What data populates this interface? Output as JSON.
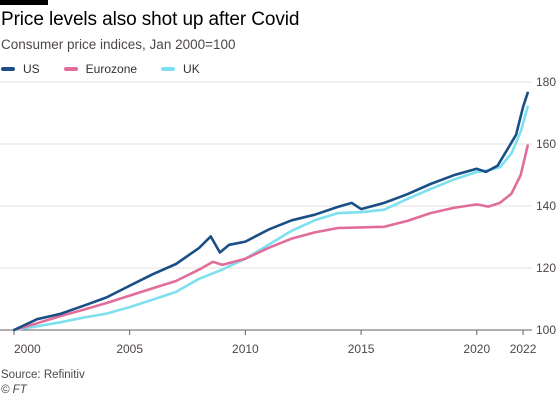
{
  "header": {
    "title": "Price levels also shot up after Covid",
    "subtitle": "Consumer price indices, Jan 2000=100"
  },
  "legend": [
    {
      "name": "US",
      "color": "#1a4f86"
    },
    {
      "name": "Eurozone",
      "color": "#e16d9a"
    },
    {
      "name": "UK",
      "color": "#7ee0ef"
    }
  ],
  "footer": {
    "source": "Source: Refinitiv",
    "credit": "© FT"
  },
  "chart_data": {
    "type": "line",
    "title": "Price levels also shot up after Covid",
    "subtitle": "Consumer price indices, Jan 2000=100",
    "xlabel": "",
    "ylabel": "",
    "xlim": [
      2000,
      2022.3
    ],
    "ylim": [
      100,
      180
    ],
    "x_ticks": [
      2000,
      2005,
      2010,
      2015,
      2020,
      2022
    ],
    "y_ticks": [
      100,
      120,
      140,
      160,
      180
    ],
    "y_axis_side": "right",
    "grid": "horizontal",
    "legend_position": "top-left",
    "series": [
      {
        "name": "US",
        "color": "#1a4f86",
        "x": [
          2000,
          2001,
          2002,
          2003,
          2004,
          2005,
          2006,
          2007,
          2008,
          2008.5,
          2008.9,
          2009.3,
          2010,
          2011,
          2012,
          2013,
          2014,
          2014.6,
          2015,
          2016,
          2017,
          2018,
          2019,
          2020,
          2020.4,
          2020.9,
          2021.3,
          2021.7,
          2022,
          2022.2
        ],
        "y": [
          100,
          103.5,
          105.2,
          107.8,
          110.5,
          114.3,
          118.0,
          121.3,
          126.5,
          130.2,
          125.0,
          127.5,
          128.5,
          132.4,
          135.4,
          137.2,
          139.7,
          141.0,
          139.0,
          141.0,
          143.8,
          147.1,
          149.9,
          152.0,
          151.0,
          153.0,
          158.0,
          163.0,
          172.0,
          176.5
        ]
      },
      {
        "name": "Eurozone",
        "color": "#e16d9a",
        "x": [
          2000,
          2001,
          2002,
          2003,
          2004,
          2005,
          2006,
          2007,
          2008,
          2008.6,
          2009,
          2010,
          2011,
          2012,
          2013,
          2014,
          2015,
          2016,
          2017,
          2018,
          2019,
          2020,
          2020.5,
          2021,
          2021.5,
          2021.9,
          2022.2
        ],
        "y": [
          100,
          102.2,
          104.5,
          106.5,
          108.7,
          111.1,
          113.5,
          115.8,
          119.5,
          122.0,
          121.0,
          123.0,
          126.5,
          129.5,
          131.5,
          132.9,
          133.1,
          133.3,
          135.2,
          137.7,
          139.4,
          140.5,
          139.8,
          141.0,
          144.0,
          150.0,
          159.5
        ]
      },
      {
        "name": "UK",
        "color": "#7ee0ef",
        "x": [
          2000,
          2001,
          2002,
          2003,
          2004,
          2005,
          2006,
          2007,
          2008,
          2009,
          2010,
          2011,
          2012,
          2013,
          2014,
          2015,
          2016,
          2017,
          2018,
          2019,
          2020,
          2020.5,
          2021,
          2021.5,
          2021.9,
          2022.2
        ],
        "y": [
          100,
          101.2,
          102.5,
          104.0,
          105.3,
          107.4,
          109.8,
          112.3,
          116.5,
          119.5,
          123.0,
          127.5,
          132.0,
          135.4,
          137.7,
          138.0,
          138.8,
          142.3,
          145.5,
          148.5,
          151.0,
          151.5,
          152.5,
          157.0,
          164.0,
          172.0
        ]
      }
    ]
  }
}
